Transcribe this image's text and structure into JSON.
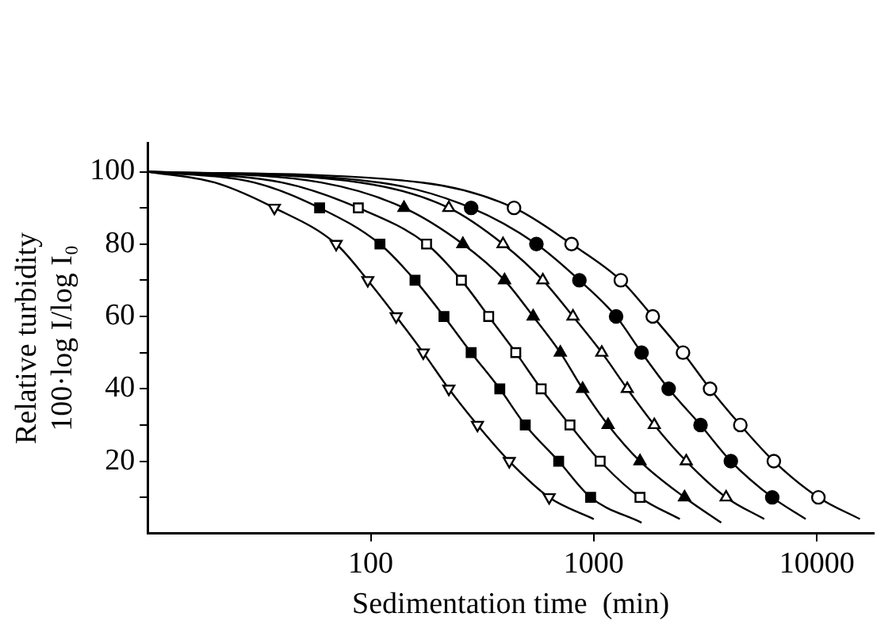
{
  "chart_data": {
    "type": "scatter",
    "xlabel": "Sedimentation time  (min)",
    "ylabel": [
      "Relative turbidity",
      "100·log I/log I₀"
    ],
    "log": "x",
    "xlim": [
      10,
      18000
    ],
    "xticks": [
      100,
      1000,
      10000
    ],
    "ylim": [
      0,
      108
    ],
    "yticks": [
      {
        "value": 10,
        "label": null
      },
      20,
      {
        "value": 30,
        "label": null
      },
      40,
      {
        "value": 50,
        "label": null
      },
      60,
      {
        "value": 70,
        "label": null
      },
      80,
      {
        "value": 90,
        "label": null
      },
      100
    ],
    "grid": false,
    "legend": false,
    "series": [
      {
        "type": "scatter",
        "marker": "triangle-down-open",
        "color": "#000000",
        "x": [
          37,
          70,
          97,
          130,
          172,
          224,
          301,
          418,
          631
        ],
        "values": [
          90,
          80,
          70,
          60,
          50,
          40,
          30,
          20,
          10
        ]
      },
      {
        "type": "scatter",
        "marker": "square",
        "color": "#000000",
        "x": [
          59,
          110,
          158,
          213,
          282,
          379,
          493,
          696,
          968
        ],
        "values": [
          90,
          80,
          70,
          60,
          50,
          40,
          30,
          20,
          10
        ]
      },
      {
        "type": "scatter",
        "marker": "square-open",
        "color": "#000000",
        "x": [
          88,
          178,
          255,
          338,
          447,
          581,
          782,
          1068,
          1611
        ],
        "values": [
          90,
          80,
          70,
          60,
          50,
          40,
          30,
          20,
          10
        ]
      },
      {
        "type": "scatter",
        "marker": "triangle",
        "color": "#000000",
        "x": [
          141,
          259,
          398,
          535,
          708,
          891,
          1159,
          1611,
          2552
        ],
        "values": [
          90,
          80,
          70,
          60,
          50,
          40,
          30,
          20,
          10
        ]
      },
      {
        "type": "scatter",
        "marker": "triangle-open",
        "color": "#000000",
        "x": [
          224,
          392,
          591,
          807,
          1086,
          1413,
          1868,
          2597,
          3919
        ],
        "values": [
          90,
          80,
          70,
          60,
          50,
          40,
          30,
          20,
          10
        ]
      },
      {
        "type": "scatter",
        "marker": "circle",
        "color": "#000000",
        "x": [
          282,
          553,
          862,
          1259,
          1638,
          2166,
          3010,
          4115,
          6310
        ],
        "values": [
          90,
          80,
          70,
          60,
          50,
          40,
          30,
          20,
          10
        ]
      },
      {
        "type": "scatter",
        "marker": "circle-open",
        "color": "#000000",
        "x": [
          439,
          795,
          1322,
          1838,
          2512,
          3321,
          4539,
          6415,
          10160
        ],
        "values": [
          90,
          80,
          70,
          60,
          50,
          40,
          30,
          20,
          10
        ]
      },
      {
        "type": "line",
        "marker": "none",
        "color": "#000000",
        "x": [
          10,
          20,
          37,
          70,
          97,
          130,
          172,
          224,
          301,
          418,
          631,
          1000
        ],
        "values": [
          100,
          97,
          90,
          80,
          70,
          60,
          50,
          40,
          30,
          20,
          10,
          4
        ]
      },
      {
        "type": "line",
        "marker": "none",
        "color": "#000000",
        "x": [
          10,
          30,
          59,
          110,
          158,
          213,
          282,
          379,
          493,
          696,
          968,
          1638
        ],
        "values": [
          100,
          97,
          90,
          80,
          70,
          60,
          50,
          40,
          30,
          20,
          10,
          3
        ]
      },
      {
        "type": "line",
        "marker": "none",
        "color": "#000000",
        "x": [
          10,
          40,
          88,
          178,
          255,
          338,
          447,
          581,
          782,
          1068,
          1611,
          2432
        ],
        "values": [
          100,
          97,
          90,
          80,
          70,
          60,
          50,
          40,
          30,
          20,
          10,
          4
        ]
      },
      {
        "type": "line",
        "marker": "none",
        "color": "#000000",
        "x": [
          10,
          60,
          141,
          259,
          398,
          535,
          708,
          891,
          1159,
          1611,
          2552,
          3727
        ],
        "values": [
          100,
          97,
          90,
          80,
          70,
          60,
          50,
          40,
          30,
          20,
          10,
          3
        ]
      },
      {
        "type": "line",
        "marker": "none",
        "color": "#000000",
        "x": [
          10,
          90,
          224,
          392,
          591,
          807,
          1086,
          1413,
          1868,
          2597,
          3919,
          5808
        ],
        "values": [
          100,
          97,
          90,
          80,
          70,
          60,
          50,
          40,
          30,
          20,
          10,
          4
        ]
      },
      {
        "type": "line",
        "marker": "none",
        "color": "#000000",
        "x": [
          10,
          110,
          282,
          553,
          862,
          1259,
          1638,
          2166,
          3010,
          4115,
          6310,
          8913
        ],
        "values": [
          100,
          97,
          90,
          80,
          70,
          60,
          50,
          40,
          30,
          20,
          10,
          4
        ]
      },
      {
        "type": "line",
        "marker": "none",
        "color": "#000000",
        "x": [
          10,
          170,
          439,
          795,
          1322,
          1838,
          2512,
          3321,
          4539,
          6415,
          10160,
          15600
        ],
        "values": [
          100,
          97,
          90,
          80,
          70,
          60,
          50,
          40,
          30,
          20,
          10,
          4
        ]
      }
    ]
  }
}
